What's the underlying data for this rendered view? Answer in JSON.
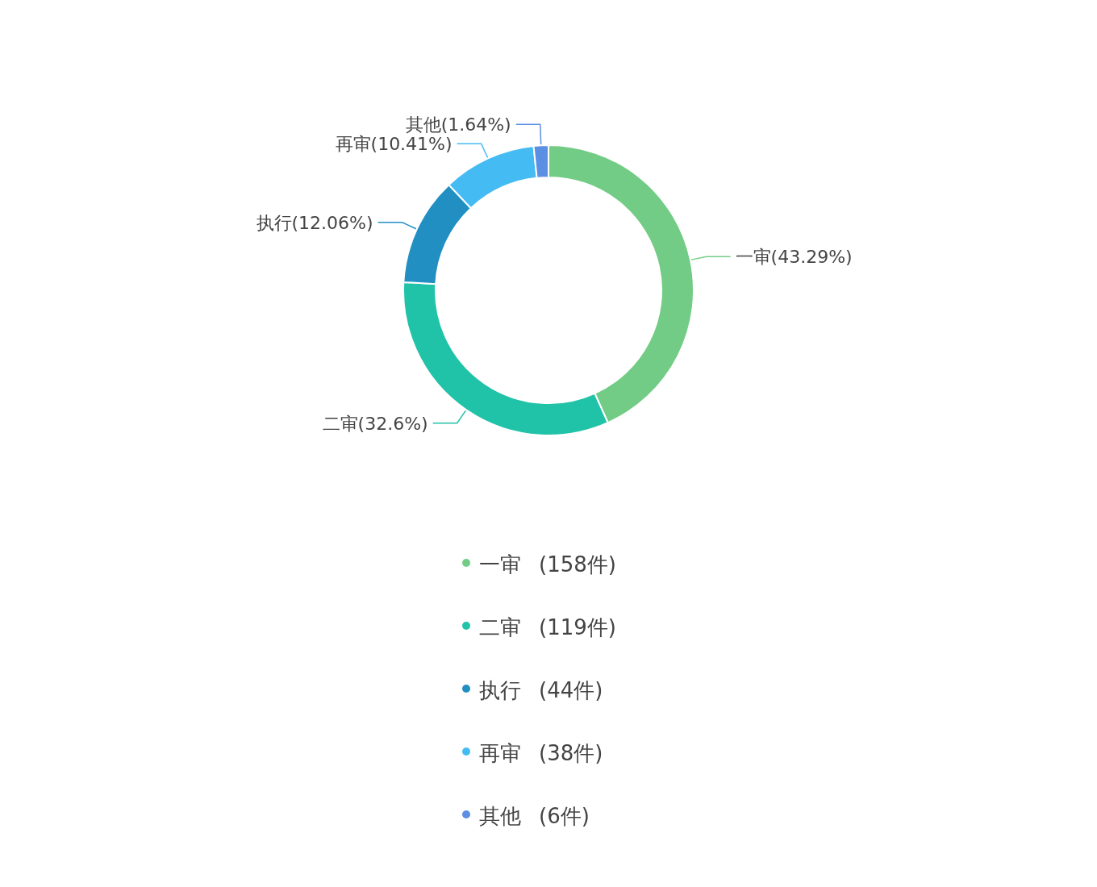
{
  "chart_data": {
    "type": "donut",
    "categories": [
      "一审",
      "二审",
      "执行",
      "再审",
      "其他"
    ],
    "values": [
      43.29,
      32.6,
      12.06,
      10.41,
      1.64
    ],
    "colors": [
      "#72cc85",
      "#21c3a8",
      "#228fc3",
      "#45bbf4",
      "#5b8fe3"
    ],
    "value_labels": [
      "(43.29%)",
      "(32.6%)",
      "(12.06%)",
      "(10.41%)",
      "(1.64%)"
    ],
    "annotations": [
      "(158件)",
      "(119件)",
      "(44件)",
      "(38件)",
      "(6件)"
    ],
    "legend": "bottom"
  }
}
